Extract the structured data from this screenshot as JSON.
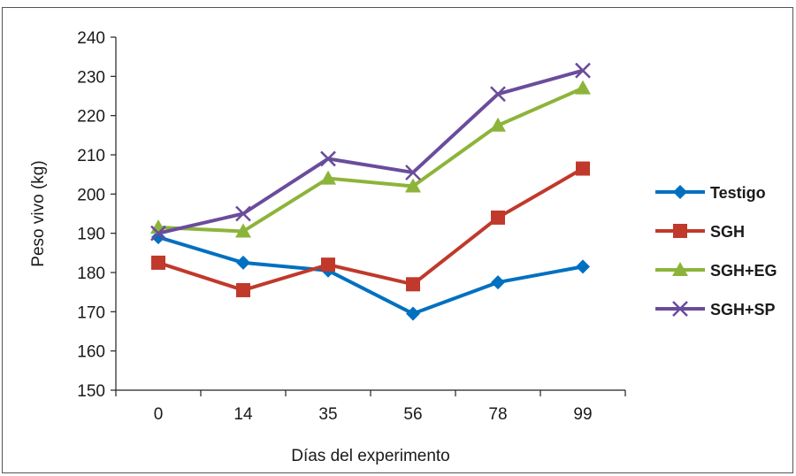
{
  "chart_data": {
    "type": "line",
    "title": "",
    "xlabel": "Días del experimento",
    "ylabel": "Peso vivo (kg)",
    "categories": [
      "0",
      "14",
      "35",
      "56",
      "78",
      "99"
    ],
    "ylim": [
      150,
      240
    ],
    "yticks": [
      150,
      160,
      170,
      180,
      190,
      200,
      210,
      220,
      230,
      240
    ],
    "grid": false,
    "legend_position": "right",
    "series": [
      {
        "name": "Testigo",
        "color": "#0070C0",
        "marker": "diamond",
        "values": [
          189,
          182.5,
          180.5,
          169.5,
          177.5,
          181.5
        ]
      },
      {
        "name": "SGH",
        "color": "#C0392B",
        "marker": "square",
        "values": [
          182.5,
          175.5,
          182,
          177,
          194,
          206.5
        ]
      },
      {
        "name": "SGH+EG",
        "color": "#8DB43A",
        "marker": "triangle",
        "values": [
          191.5,
          190.5,
          204,
          202,
          217.5,
          227
        ]
      },
      {
        "name": "SGH+SP",
        "color": "#6A4C9C",
        "marker": "x",
        "values": [
          190,
          195,
          209,
          205.5,
          225.5,
          231.5
        ]
      }
    ]
  }
}
